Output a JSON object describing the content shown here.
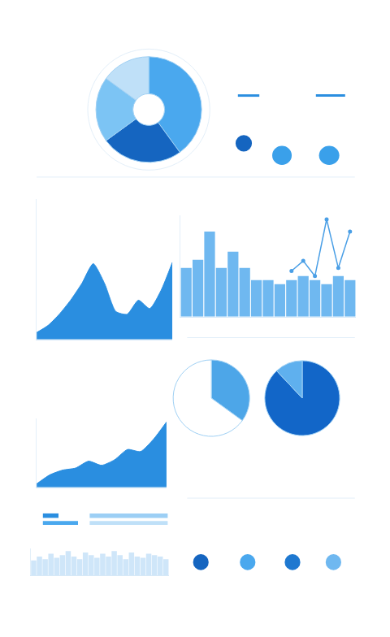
{
  "chart_data": [
    {
      "type": "donut",
      "values": [
        40,
        25,
        20,
        15
      ],
      "colors": [
        "#4aa8ee",
        "#1565c0",
        "#7cc4f4",
        "#bfe0f8"
      ],
      "tick_labels": false
    },
    {
      "type": "area",
      "categories": [
        null,
        null,
        null,
        null,
        null,
        null,
        null,
        null,
        null,
        null,
        null,
        null,
        null
      ],
      "values": [
        5,
        10,
        18,
        28,
        40,
        54,
        40,
        20,
        18,
        28,
        22,
        35,
        55
      ],
      "color": "#2a8ee0",
      "ylim": [
        0,
        100
      ],
      "grid": false,
      "tick_labels": false
    },
    {
      "type": "bar",
      "categories": [
        null,
        null,
        null,
        null,
        null,
        null,
        null,
        null,
        null,
        null,
        null,
        null,
        null,
        null,
        null
      ],
      "series": [
        {
          "type": "bar",
          "color": "#6fb8f0",
          "values": [
            48,
            56,
            84,
            48,
            64,
            48,
            36,
            36,
            32,
            36,
            40,
            36,
            32,
            40,
            36
          ]
        },
        {
          "type": "line",
          "color": "#4a9fe6",
          "marker": "circle",
          "values": [
            null,
            null,
            null,
            null,
            null,
            null,
            null,
            null,
            null,
            45,
            55,
            40,
            96,
            48,
            84
          ]
        }
      ],
      "ylim": [
        0,
        100
      ],
      "grid": false,
      "tick_labels": false
    },
    {
      "type": "pie",
      "values": [
        35,
        65
      ],
      "colors": [
        "#4da6e8",
        "#ffffff"
      ],
      "tick_labels": false
    },
    {
      "type": "pie",
      "values": [
        88,
        12
      ],
      "colors": [
        "#1266c8",
        "#5fb0ee"
      ],
      "tick_labels": false
    },
    {
      "type": "area",
      "categories": [
        null,
        null,
        null,
        null,
        null,
        null,
        null,
        null,
        null,
        null,
        null
      ],
      "values": [
        5,
        18,
        25,
        28,
        38,
        32,
        40,
        55,
        52,
        70,
        95
      ],
      "color": "#2a8ee0",
      "ylim": [
        0,
        100
      ],
      "grid": false,
      "tick_labels": false
    },
    {
      "type": "bar",
      "categories": [
        null,
        null,
        null,
        null,
        null,
        null,
        null,
        null,
        null,
        null,
        null,
        null,
        null,
        null,
        null,
        null,
        null,
        null,
        null,
        null,
        null,
        null,
        null,
        null
      ],
      "values": [
        55,
        70,
        60,
        80,
        65,
        75,
        90,
        70,
        60,
        85,
        75,
        65,
        80,
        70,
        90,
        75,
        60,
        85,
        70,
        65,
        80,
        75,
        70,
        60
      ],
      "color": "#cfe6f9",
      "ylim": [
        0,
        100
      ],
      "grid": false,
      "tick_labels": false
    }
  ]
}
